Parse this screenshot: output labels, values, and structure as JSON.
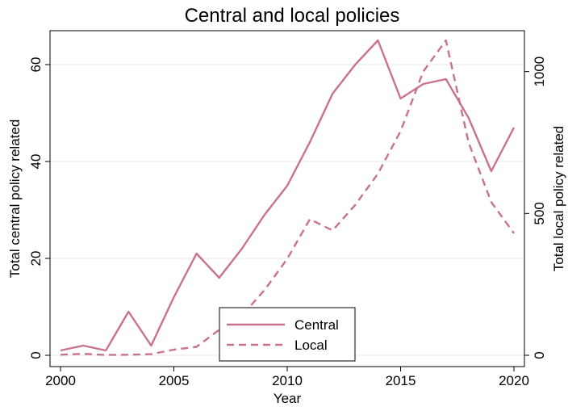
{
  "chart_data": {
    "type": "line",
    "title": "Central and local policies",
    "xlabel": "Year",
    "ylabel_left": "Total central policy related",
    "ylabel_right": "Total local policy related",
    "xlim": [
      2000,
      2020
    ],
    "ylim_left": [
      0,
      65
    ],
    "ylim_right": [
      0,
      1110
    ],
    "x_ticks": [
      2000,
      2005,
      2010,
      2015,
      2020
    ],
    "y_ticks_left": [
      0,
      20,
      40,
      60
    ],
    "y_ticks_right": [
      0,
      500,
      1000
    ],
    "grid": true,
    "legend_position": "bottom-center",
    "line_color": "#c9728f",
    "x": [
      2000,
      2001,
      2002,
      2003,
      2004,
      2005,
      2006,
      2007,
      2008,
      2009,
      2010,
      2011,
      2012,
      2013,
      2014,
      2015,
      2016,
      2017,
      2018,
      2019,
      2020
    ],
    "series": [
      {
        "name": "Central",
        "axis": "left",
        "style": "solid",
        "values": [
          1,
          2,
          1,
          9,
          2,
          12,
          21,
          16,
          22,
          29,
          35,
          44,
          54,
          60,
          65,
          53,
          56,
          57,
          49,
          38,
          47
        ]
      },
      {
        "name": "Local",
        "axis": "right",
        "style": "dashed",
        "values": [
          2,
          5,
          1,
          2,
          4,
          20,
          30,
          90,
          140,
          230,
          340,
          480,
          440,
          530,
          640,
          790,
          1000,
          1110,
          750,
          540,
          430
        ]
      }
    ]
  }
}
